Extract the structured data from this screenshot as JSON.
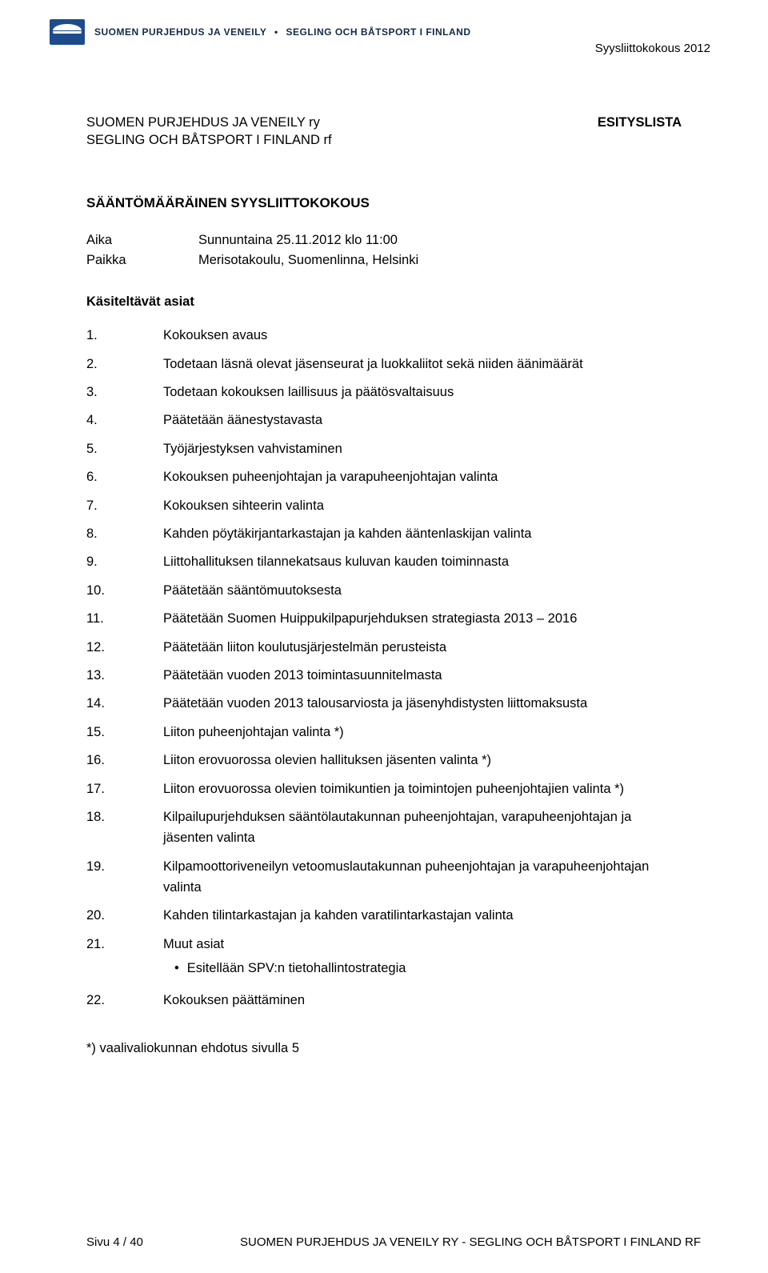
{
  "header": {
    "org_text_left": "SUOMEN PURJEHDUS JA VENEILY",
    "org_text_sep": "•",
    "org_text_right": "SEGLING OCH BÅTSPORT I FINLAND",
    "top_right": "Syysliittokokous 2012"
  },
  "org": {
    "line1": "SUOMEN PURJEHDUS JA VENEILY ry",
    "line2": "SEGLING OCH BÅTSPORT I FINLAND rf",
    "doc_type": "ESITYSLISTA"
  },
  "title": "SÄÄNTÖMÄÄRÄINEN SYYSLIITTOKOKOUS",
  "meta": {
    "aika_label": "Aika",
    "aika_value": "Sunnuntaina 25.11.2012 klo 11:00",
    "paikka_label": "Paikka",
    "paikka_value": "Merisotakoulu, Suomenlinna, Helsinki"
  },
  "section_heading": "Käsiteltävät asiat",
  "items": [
    {
      "n": "1.",
      "t": "Kokouksen avaus"
    },
    {
      "n": "2.",
      "t": "Todetaan läsnä olevat jäsenseurat ja luokkaliitot sekä niiden äänimäärät"
    },
    {
      "n": "3.",
      "t": "Todetaan kokouksen laillisuus ja päätösvaltaisuus"
    },
    {
      "n": "4.",
      "t": "Päätetään äänestystavasta"
    },
    {
      "n": "5.",
      "t": "Työjärjestyksen vahvistaminen"
    },
    {
      "n": "6.",
      "t": "Kokouksen puheenjohtajan ja varapuheenjohtajan valinta"
    },
    {
      "n": "7.",
      "t": "Kokouksen sihteerin valinta"
    },
    {
      "n": "8.",
      "t": "Kahden pöytäkirjantarkastajan ja kahden ääntenlaskijan valinta"
    },
    {
      "n": "9.",
      "t": "Liittohallituksen tilannekatsaus kuluvan kauden toiminnasta"
    },
    {
      "n": "10.",
      "t": "Päätetään sääntömuutoksesta"
    },
    {
      "n": "11.",
      "t": "Päätetään Suomen Huippukilpapurjehduksen strategiasta 2013 – 2016"
    },
    {
      "n": "12.",
      "t": "Päätetään liiton koulutusjärjestelmän perusteista"
    },
    {
      "n": "13.",
      "t": "Päätetään vuoden 2013 toimintasuunnitelmasta"
    },
    {
      "n": "14.",
      "t": "Päätetään vuoden 2013 talousarviosta ja jäsenyhdistysten liittomaksusta"
    },
    {
      "n": "15.",
      "t": "Liiton puheenjohtajan valinta *)"
    },
    {
      "n": "16.",
      "t": "Liiton erovuorossa olevien hallituksen jäsenten valinta *)"
    },
    {
      "n": "17.",
      "t": "Liiton erovuorossa olevien toimikuntien ja toimintojen puheenjohtajien valinta *)"
    },
    {
      "n": "18.",
      "t": "Kilpailupurjehduksen sääntölautakunnan puheenjohtajan, varapuheenjohtajan ja jäsenten valinta"
    },
    {
      "n": "19.",
      "t": "Kilpamoottoriveneilyn vetoomuslautakunnan puheenjohtajan ja varapuheenjohtajan valinta"
    },
    {
      "n": "20.",
      "t": "Kahden tilintarkastajan ja kahden varatilintarkastajan valinta"
    },
    {
      "n": "21.",
      "t": "Muut asiat",
      "sub": [
        "Esitellään SPV:n tietohallintostrategia"
      ]
    },
    {
      "n": "22.",
      "t": "Kokouksen päättäminen"
    }
  ],
  "footnote": "*) vaalivaliokunnan ehdotus sivulla  5",
  "footer": {
    "page": "Sivu 4 / 40",
    "text": "SUOMEN PURJEHDUS JA VENEILY RY - SEGLING OCH BÅTSPORT I FINLAND RF"
  },
  "colors": {
    "text": "#000000",
    "header_text": "#122a4a",
    "logo_bg": "#1e4b8c",
    "background": "#ffffff"
  },
  "typography": {
    "body_font": "Arial",
    "body_size_pt": 12,
    "header_size_pt": 9
  }
}
